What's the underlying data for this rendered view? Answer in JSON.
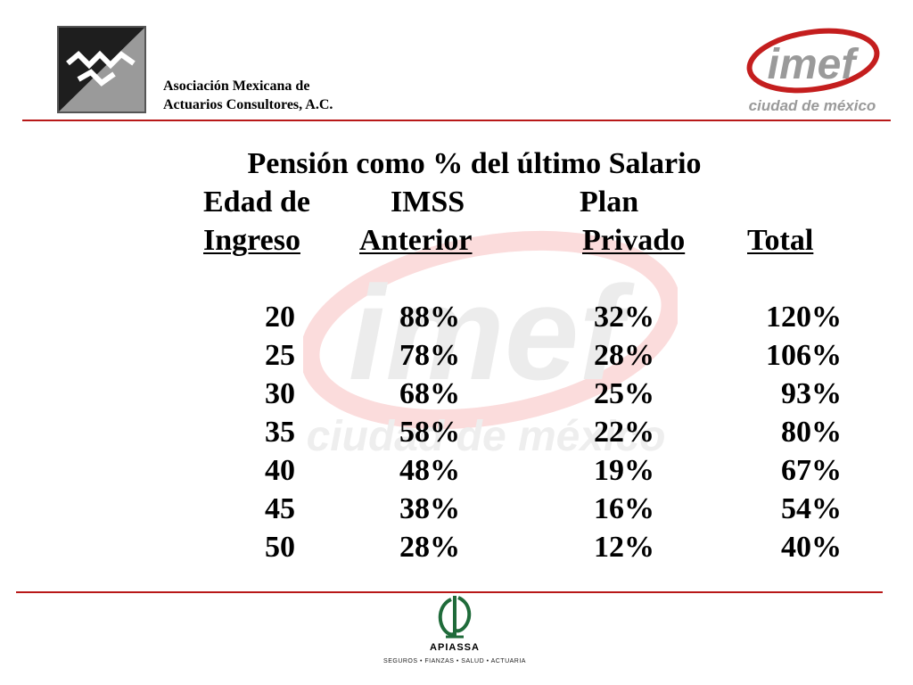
{
  "header": {
    "org_name_line1": "Asociación Mexicana de",
    "org_name_line2": "Actuarios Consultores, A.C.",
    "imef_logo_text": "imef",
    "imef_logo_subtitle": "ciudad de méxico"
  },
  "watermark": {
    "text": "imef",
    "subtitle": "ciudad de méxico"
  },
  "table": {
    "title": "Pensión como % del último Salario",
    "headers": {
      "age_line1": "Edad de",
      "age_line2": "Ingreso",
      "imss_line1": "IMSS",
      "imss_line2": "Anterior",
      "plan_line1": "Plan",
      "plan_line2": "Privado",
      "total": "Total"
    },
    "rows": [
      {
        "age": "20",
        "imss": "88%",
        "private": "32%",
        "total": "120%"
      },
      {
        "age": "25",
        "imss": "78%",
        "private": "28%",
        "total": "106%"
      },
      {
        "age": "30",
        "imss": "68%",
        "private": "25%",
        "total": "93%"
      },
      {
        "age": "35",
        "imss": "58%",
        "private": "22%",
        "total": "80%"
      },
      {
        "age": "40",
        "imss": "48%",
        "private": "19%",
        "total": "67%"
      },
      {
        "age": "45",
        "imss": "38%",
        "private": "16%",
        "total": "54%"
      },
      {
        "age": "50",
        "imss": "28%",
        "private": "12%",
        "total": "40%"
      }
    ]
  },
  "footer": {
    "logo_name": "APIASSA",
    "tagline": "SEGUROS  •  FIANZAS  •  SALUD  •  ACTUARIA"
  },
  "colors": {
    "accent_red": "#b81818",
    "apiassa_green": "#1f6b3a"
  }
}
